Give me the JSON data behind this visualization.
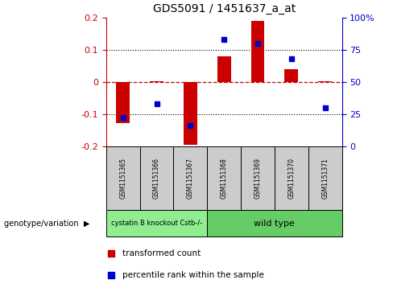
{
  "title": "GDS5091 / 1451637_a_at",
  "samples": [
    "GSM1151365",
    "GSM1151366",
    "GSM1151367",
    "GSM1151368",
    "GSM1151369",
    "GSM1151370",
    "GSM1151371"
  ],
  "bar_values": [
    -0.128,
    0.002,
    -0.195,
    0.078,
    0.19,
    0.038,
    0.002
  ],
  "dot_values": [
    22,
    33,
    16,
    83,
    80,
    68,
    30
  ],
  "ylim_left": [
    -0.2,
    0.2
  ],
  "ylim_right": [
    0,
    100
  ],
  "bar_color": "#cc0000",
  "dot_color": "#0000cc",
  "zero_line_color": "#cc0000",
  "grid_color": "#000000",
  "background_color": "#ffffff",
  "genotype_labels": [
    {
      "text": "cystatin B knockout Cstb-/-",
      "n_samples": 3,
      "color": "#90ee90"
    },
    {
      "text": "wild type",
      "n_samples": 4,
      "color": "#66cc66"
    }
  ],
  "legend_items": [
    {
      "label": "transformed count",
      "color": "#cc0000"
    },
    {
      "label": "percentile rank within the sample",
      "color": "#0000cc"
    }
  ],
  "xlabel_genotype": "genotype/variation",
  "yticks_left": [
    -0.2,
    -0.1,
    0.0,
    0.1,
    0.2
  ],
  "ytick_labels_left": [
    "-0.2",
    "-0.1",
    "0",
    "0.1",
    "0.2"
  ],
  "yticks_right": [
    0,
    25,
    50,
    75,
    100
  ],
  "ytick_labels_right": [
    "0",
    "25",
    "50",
    "75",
    "100%"
  ],
  "sample_box_color": "#cccccc",
  "spine_color_left": "#cc0000",
  "spine_color_right": "#0000cc"
}
